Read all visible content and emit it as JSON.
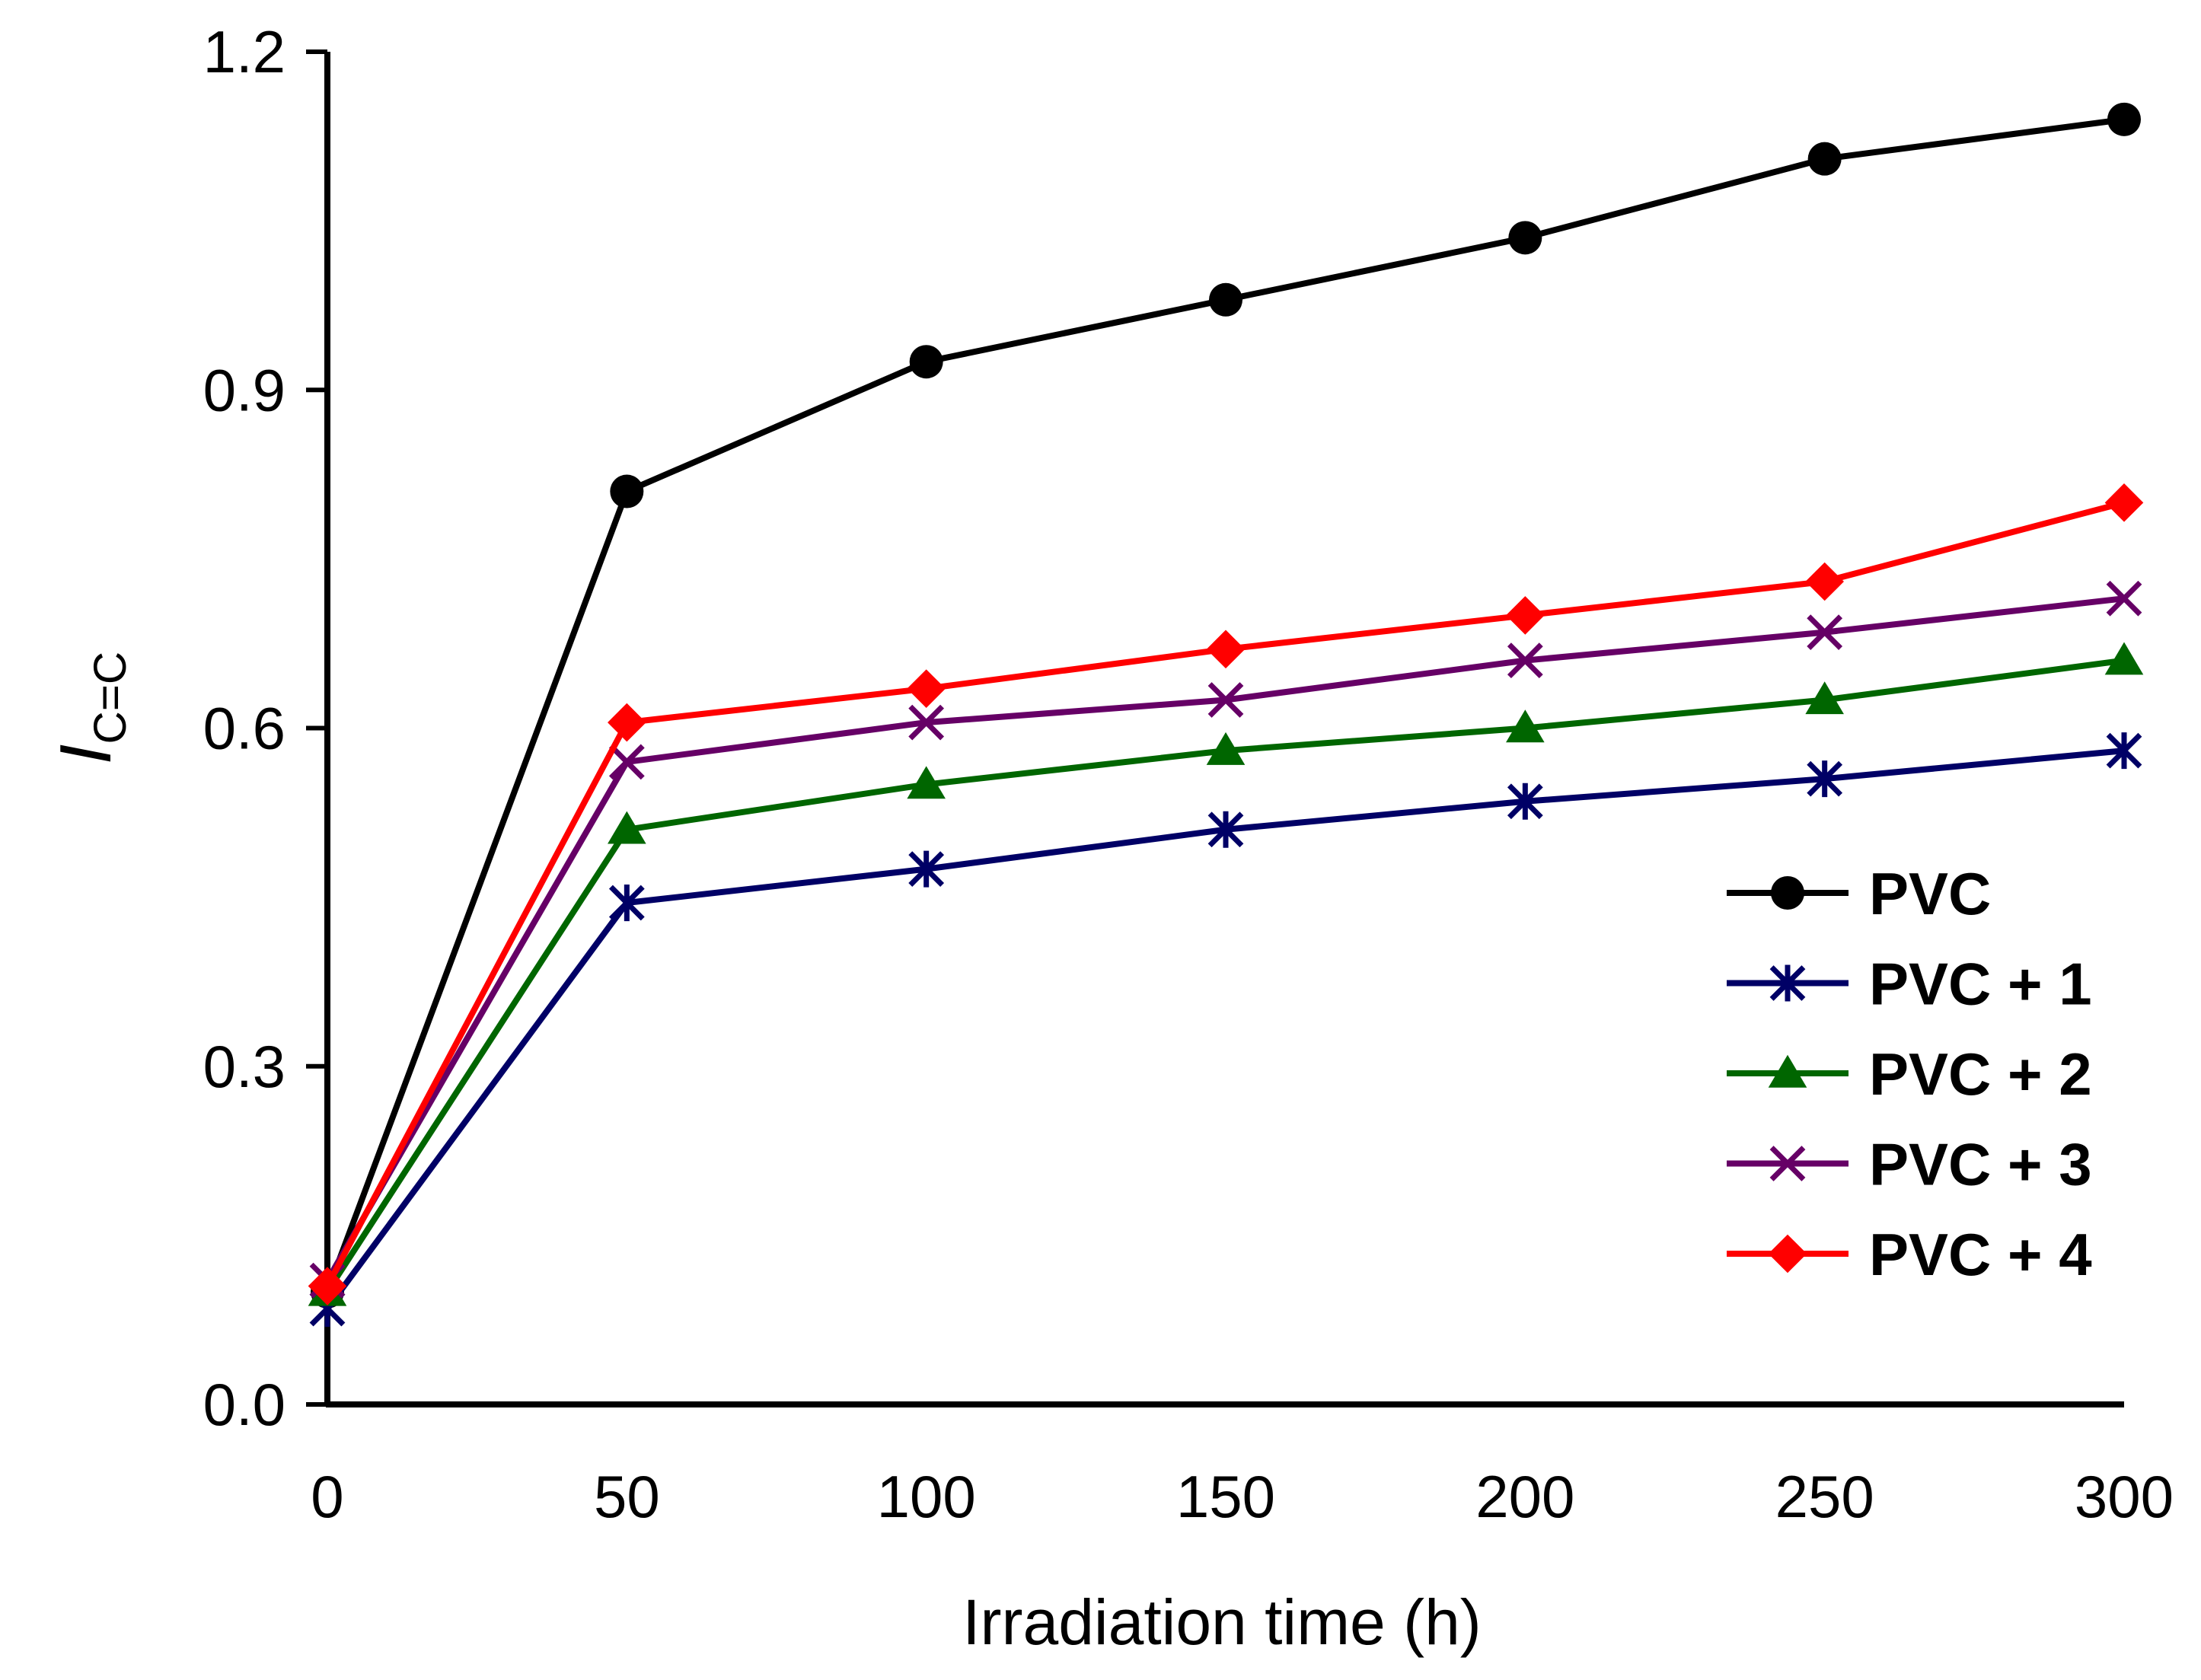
{
  "chart_data": {
    "type": "line",
    "title": "",
    "xlabel": "Irradiation time (h)",
    "ylabel_main": "I",
    "ylabel_sub": "C=C",
    "x": [
      0,
      50,
      100,
      150,
      200,
      250,
      300
    ],
    "xlim": [
      0,
      300
    ],
    "ylim": [
      0,
      1.2
    ],
    "xticks": [
      0,
      50,
      100,
      150,
      200,
      250,
      300
    ],
    "xtick_labels": [
      "0",
      "50",
      "100",
      "150",
      "200",
      "250",
      "300"
    ],
    "yticks": [
      0,
      0.3,
      0.6,
      0.9,
      1.2
    ],
    "ytick_labels": [
      "0.0",
      "0.3",
      "0.6",
      "0.9",
      "1.2"
    ],
    "grid": false,
    "legend_position": "bottom-right",
    "series": [
      {
        "name": "PVC",
        "color": "#000000",
        "marker": "circle",
        "values": [
          0.1,
          0.81,
          0.925,
          0.98,
          1.035,
          1.105,
          1.14
        ]
      },
      {
        "name": "PVC + 1",
        "color": "#000066",
        "marker": "asterisk",
        "values": [
          0.085,
          0.445,
          0.475,
          0.51,
          0.535,
          0.555,
          0.58
        ]
      },
      {
        "name": "PVC + 2",
        "color": "#006600",
        "marker": "triangle",
        "values": [
          0.1,
          0.51,
          0.55,
          0.58,
          0.6,
          0.625,
          0.66
        ]
      },
      {
        "name": "PVC + 3",
        "color": "#660066",
        "marker": "x",
        "values": [
          0.11,
          0.57,
          0.605,
          0.625,
          0.66,
          0.685,
          0.715
        ]
      },
      {
        "name": "PVC + 4",
        "color": "#ff0000",
        "marker": "diamond",
        "values": [
          0.105,
          0.605,
          0.635,
          0.67,
          0.7,
          0.73,
          0.8
        ]
      }
    ]
  }
}
